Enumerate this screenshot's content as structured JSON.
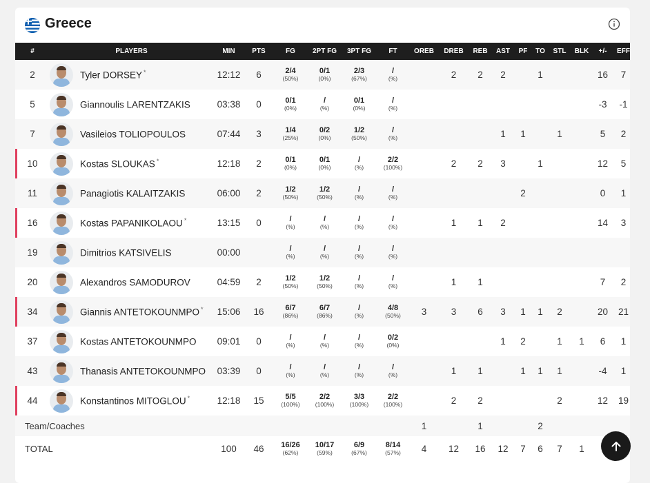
{
  "team": {
    "name": "Greece",
    "flag_icon": "greece-flag-icon",
    "info_icon": "info-icon"
  },
  "colors": {
    "header_bg": "#1e1e1e",
    "starter_marker": "#e0405f",
    "accent_blue": "#0d5eaf"
  },
  "columns": [
    "#",
    "PLAYERS",
    "MIN",
    "PTS",
    "FG",
    "2PT FG",
    "3PT FG",
    "FT",
    "OREB",
    "DREB",
    "REB",
    "AST",
    "PF",
    "TO",
    "STL",
    "BLK",
    "+/-",
    "EFF"
  ],
  "players": [
    {
      "num": "2",
      "name": "Tyler DORSEY",
      "star": "*",
      "starter": false,
      "min": "12:12",
      "pts": "6",
      "fg": {
        "m": "2/4",
        "p": "(50%)"
      },
      "fg2": {
        "m": "0/1",
        "p": "(0%)"
      },
      "fg3": {
        "m": "2/3",
        "p": "(67%)"
      },
      "ft": {
        "m": "/",
        "p": "(%)"
      },
      "oreb": "",
      "dreb": "2",
      "reb": "2",
      "ast": "2",
      "pf": "",
      "to": "1",
      "stl": "",
      "blk": "",
      "pm": "16",
      "eff": "7"
    },
    {
      "num": "5",
      "name": "Giannoulis LARENTZAKIS",
      "star": "",
      "starter": false,
      "min": "03:38",
      "pts": "0",
      "fg": {
        "m": "0/1",
        "p": "(0%)"
      },
      "fg2": {
        "m": "/",
        "p": "(%)"
      },
      "fg3": {
        "m": "0/1",
        "p": "(0%)"
      },
      "ft": {
        "m": "/",
        "p": "(%)"
      },
      "oreb": "",
      "dreb": "",
      "reb": "",
      "ast": "",
      "pf": "",
      "to": "",
      "stl": "",
      "blk": "",
      "pm": "-3",
      "eff": "-1"
    },
    {
      "num": "7",
      "name": "Vasileios TOLIOPOULOS",
      "star": "",
      "starter": false,
      "min": "07:44",
      "pts": "3",
      "fg": {
        "m": "1/4",
        "p": "(25%)"
      },
      "fg2": {
        "m": "0/2",
        "p": "(0%)"
      },
      "fg3": {
        "m": "1/2",
        "p": "(50%)"
      },
      "ft": {
        "m": "/",
        "p": "(%)"
      },
      "oreb": "",
      "dreb": "",
      "reb": "",
      "ast": "1",
      "pf": "1",
      "to": "",
      "stl": "1",
      "blk": "",
      "pm": "5",
      "eff": "2"
    },
    {
      "num": "10",
      "name": "Kostas SLOUKAS",
      "star": "*",
      "starter": true,
      "min": "12:18",
      "pts": "2",
      "fg": {
        "m": "0/1",
        "p": "(0%)"
      },
      "fg2": {
        "m": "0/1",
        "p": "(0%)"
      },
      "fg3": {
        "m": "/",
        "p": "(%)"
      },
      "ft": {
        "m": "2/2",
        "p": "(100%)"
      },
      "oreb": "",
      "dreb": "2",
      "reb": "2",
      "ast": "3",
      "pf": "",
      "to": "1",
      "stl": "",
      "blk": "",
      "pm": "12",
      "eff": "5"
    },
    {
      "num": "11",
      "name": "Panagiotis KALAITZAKIS",
      "star": "",
      "starter": false,
      "min": "06:00",
      "pts": "2",
      "fg": {
        "m": "1/2",
        "p": "(50%)"
      },
      "fg2": {
        "m": "1/2",
        "p": "(50%)"
      },
      "fg3": {
        "m": "/",
        "p": "(%)"
      },
      "ft": {
        "m": "/",
        "p": "(%)"
      },
      "oreb": "",
      "dreb": "",
      "reb": "",
      "ast": "",
      "pf": "2",
      "to": "",
      "stl": "",
      "blk": "",
      "pm": "0",
      "eff": "1"
    },
    {
      "num": "16",
      "name": "Kostas PAPANIKOLAOU",
      "star": "*",
      "starter": true,
      "min": "13:15",
      "pts": "0",
      "fg": {
        "m": "/",
        "p": "(%)"
      },
      "fg2": {
        "m": "/",
        "p": "(%)"
      },
      "fg3": {
        "m": "/",
        "p": "(%)"
      },
      "ft": {
        "m": "/",
        "p": "(%)"
      },
      "oreb": "",
      "dreb": "1",
      "reb": "1",
      "ast": "2",
      "pf": "",
      "to": "",
      "stl": "",
      "blk": "",
      "pm": "14",
      "eff": "3"
    },
    {
      "num": "19",
      "name": "Dimitrios KATSIVELIS",
      "star": "",
      "starter": false,
      "min": "00:00",
      "pts": "",
      "fg": {
        "m": "/",
        "p": "(%)"
      },
      "fg2": {
        "m": "/",
        "p": "(%)"
      },
      "fg3": {
        "m": "/",
        "p": "(%)"
      },
      "ft": {
        "m": "/",
        "p": "(%)"
      },
      "oreb": "",
      "dreb": "",
      "reb": "",
      "ast": "",
      "pf": "",
      "to": "",
      "stl": "",
      "blk": "",
      "pm": "",
      "eff": ""
    },
    {
      "num": "20",
      "name": "Alexandros SAMODUROV",
      "star": "",
      "starter": false,
      "min": "04:59",
      "pts": "2",
      "fg": {
        "m": "1/2",
        "p": "(50%)"
      },
      "fg2": {
        "m": "1/2",
        "p": "(50%)"
      },
      "fg3": {
        "m": "/",
        "p": "(%)"
      },
      "ft": {
        "m": "/",
        "p": "(%)"
      },
      "oreb": "",
      "dreb": "1",
      "reb": "1",
      "ast": "",
      "pf": "",
      "to": "",
      "stl": "",
      "blk": "",
      "pm": "7",
      "eff": "2"
    },
    {
      "num": "34",
      "name": "Giannis ANTETOKOUNMPO",
      "star": "*",
      "starter": true,
      "min": "15:06",
      "pts": "16",
      "fg": {
        "m": "6/7",
        "p": "(86%)"
      },
      "fg2": {
        "m": "6/7",
        "p": "(86%)"
      },
      "fg3": {
        "m": "/",
        "p": "(%)"
      },
      "ft": {
        "m": "4/8",
        "p": "(50%)"
      },
      "oreb": "3",
      "dreb": "3",
      "reb": "6",
      "ast": "3",
      "pf": "1",
      "to": "1",
      "stl": "2",
      "blk": "",
      "pm": "20",
      "eff": "21"
    },
    {
      "num": "37",
      "name": "Kostas ANTETOKOUNMPO",
      "star": "",
      "starter": false,
      "min": "09:01",
      "pts": "0",
      "fg": {
        "m": "/",
        "p": "(%)"
      },
      "fg2": {
        "m": "/",
        "p": "(%)"
      },
      "fg3": {
        "m": "/",
        "p": "(%)"
      },
      "ft": {
        "m": "0/2",
        "p": "(0%)"
      },
      "oreb": "",
      "dreb": "",
      "reb": "",
      "ast": "1",
      "pf": "2",
      "to": "",
      "stl": "1",
      "blk": "1",
      "pm": "6",
      "eff": "1"
    },
    {
      "num": "43",
      "name": "Thanasis ANTETOKOUNMPO",
      "star": "",
      "starter": false,
      "min": "03:39",
      "pts": "0",
      "fg": {
        "m": "/",
        "p": "(%)"
      },
      "fg2": {
        "m": "/",
        "p": "(%)"
      },
      "fg3": {
        "m": "/",
        "p": "(%)"
      },
      "ft": {
        "m": "/",
        "p": "(%)"
      },
      "oreb": "",
      "dreb": "1",
      "reb": "1",
      "ast": "",
      "pf": "1",
      "to": "1",
      "stl": "1",
      "blk": "",
      "pm": "-4",
      "eff": "1"
    },
    {
      "num": "44",
      "name": "Konstantinos MITOGLOU",
      "star": "*",
      "starter": true,
      "min": "12:18",
      "pts": "15",
      "fg": {
        "m": "5/5",
        "p": "(100%)"
      },
      "fg2": {
        "m": "2/2",
        "p": "(100%)"
      },
      "fg3": {
        "m": "3/3",
        "p": "(100%)"
      },
      "ft": {
        "m": "2/2",
        "p": "(100%)"
      },
      "oreb": "",
      "dreb": "2",
      "reb": "2",
      "ast": "",
      "pf": "",
      "to": "",
      "stl": "2",
      "blk": "",
      "pm": "12",
      "eff": "19"
    }
  ],
  "team_row": {
    "label": "Team/Coaches",
    "oreb": "1",
    "reb": "1",
    "to": "2"
  },
  "total_row": {
    "label": "TOTAL",
    "min": "100",
    "pts": "46",
    "fg": {
      "m": "16/26",
      "p": "(62%)"
    },
    "fg2": {
      "m": "10/17",
      "p": "(59%)"
    },
    "fg3": {
      "m": "6/9",
      "p": "(67%)"
    },
    "ft": {
      "m": "8/14",
      "p": "(57%)"
    },
    "oreb": "4",
    "dreb": "12",
    "reb": "16",
    "ast": "12",
    "pf": "7",
    "to": "6",
    "stl": "7",
    "blk": "1"
  },
  "scroll_top_icon": "arrow-up-icon"
}
